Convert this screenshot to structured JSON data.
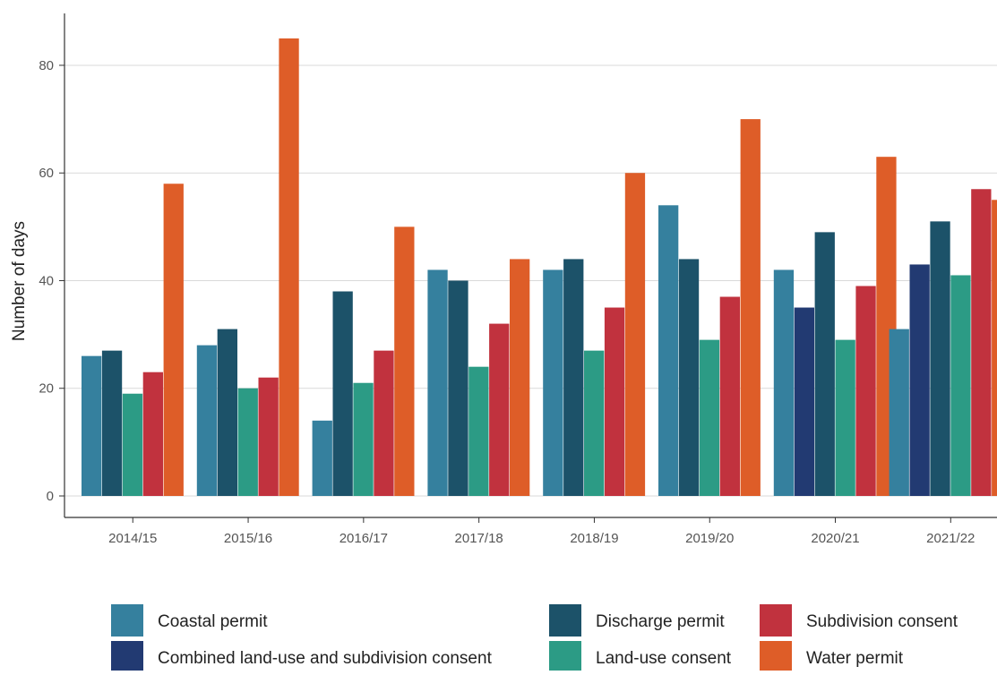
{
  "chart_data": {
    "type": "bar",
    "title": "",
    "xlabel": "",
    "ylabel": "Number of days",
    "ylim": [
      0,
      88
    ],
    "yticks": [
      0,
      20,
      40,
      60,
      80
    ],
    "grid": "horizontal",
    "legend_position": "bottom",
    "categories": [
      "2014/15",
      "2015/16",
      "2016/17",
      "2017/18",
      "2018/19",
      "2019/20",
      "2020/21",
      "2021/22"
    ],
    "series": [
      {
        "name": "Coastal permit",
        "color": "#35809E",
        "values": [
          26,
          28,
          14,
          42,
          42,
          54,
          42,
          31
        ]
      },
      {
        "name": "Combined land-use and subdivision consent",
        "color": "#223A72",
        "values": [
          null,
          null,
          null,
          null,
          null,
          null,
          35,
          43
        ]
      },
      {
        "name": "Discharge permit",
        "color": "#1C5269",
        "values": [
          27,
          31,
          38,
          40,
          44,
          44,
          49,
          51
        ]
      },
      {
        "name": "Land-use consent",
        "color": "#2C9B85",
        "values": [
          19,
          20,
          21,
          24,
          27,
          29,
          29,
          41
        ]
      },
      {
        "name": "Subdivision consent",
        "color": "#C1323E",
        "values": [
          23,
          22,
          27,
          32,
          35,
          37,
          39,
          57
        ]
      },
      {
        "name": "Water permit",
        "color": "#DE5D28",
        "values": [
          58,
          85,
          50,
          44,
          60,
          70,
          63,
          55
        ]
      }
    ]
  }
}
